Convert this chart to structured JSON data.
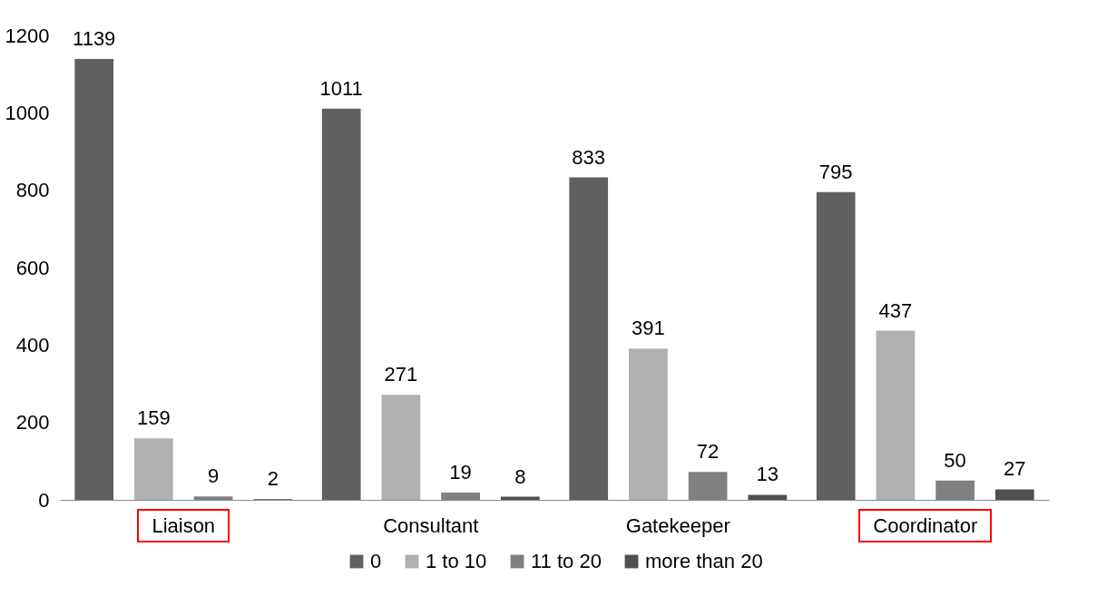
{
  "chart_data": {
    "type": "bar",
    "categories": [
      "Liaison",
      "Consultant",
      "Gatekeeper",
      "Coordinator"
    ],
    "series": [
      {
        "name": "0",
        "color": "#606060",
        "values": [
          1139,
          1011,
          833,
          795
        ]
      },
      {
        "name": "1 to 10",
        "color": "#b0b0b0",
        "values": [
          159,
          271,
          391,
          437
        ]
      },
      {
        "name": "11 to 20",
        "color": "#808080",
        "values": [
          9,
          19,
          72,
          50
        ]
      },
      {
        "name": "more than 20",
        "color": "#505050",
        "values": [
          2,
          8,
          13,
          27
        ]
      }
    ],
    "ylim": [
      0,
      1200
    ],
    "yticks": [
      0,
      200,
      400,
      600,
      800,
      1000,
      1200
    ],
    "grid": false,
    "legend": "bottom",
    "data_labels": true
  }
}
